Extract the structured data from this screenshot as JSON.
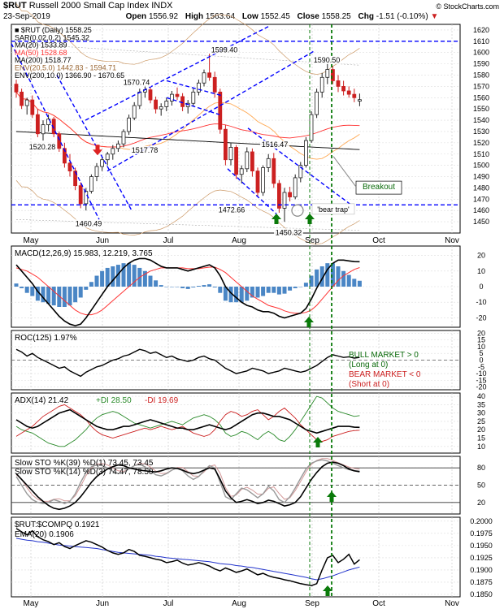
{
  "header": {
    "symbol": "$RUT",
    "name": "Russell 2000 Small Cap Index",
    "exchange": "INDX",
    "date": "23-Sep-2019",
    "open_label": "Open",
    "open": "1556.92",
    "high_label": "High",
    "high": "1563.64",
    "low_label": "Low",
    "low": "1552.45",
    "close_label": "Close",
    "close": "1558.25",
    "chg_label": "Chg",
    "chg": "-1.51 (-0.10%)",
    "brand": "© StockCharts.com"
  },
  "colors": {
    "up": "#1f1f1f",
    "down": "#cc2020",
    "trend": "#0000ff",
    "arrow_up": "#0a7a0a",
    "arrow_down": "#dd2222",
    "histogram": "#4a86c5",
    "ma20": "#ffaa55",
    "ma50": "#ff3333",
    "ma200": "#000000",
    "env20": "#cc9966",
    "env200": "#aaaaaa",
    "plusdi": "#2a8a2a",
    "minusdi": "#cc2020"
  },
  "chart_data": [
    {
      "type": "candlestick",
      "panel": "price",
      "legend": [
        "■ $RUT (Daily) 1558.25",
        "SAR(0.02,0.2) 1545.32",
        "MA(20) 1533.89",
        "MA(50) 1528.68",
        "MA(200) 1518.77",
        "ENV(20,5.0) 1442.83 - 1594.71",
        "ENV(200,10.0) 1366.90 - 1670.65"
      ],
      "y_ticks": [
        1450,
        1460,
        1470,
        1480,
        1490,
        1500,
        1510,
        1520,
        1530,
        1540,
        1550,
        1560,
        1570,
        1580,
        1590,
        1600,
        1610,
        1620
      ],
      "ylim": [
        1440,
        1625
      ],
      "x_labels": [
        "May",
        "Jun",
        "Jul",
        "Aug",
        "Sep",
        "Oct",
        "Nov"
      ],
      "annotations": [
        "1599.40",
        "1590.50",
        "1570.74",
        "1520.28",
        "1517.78",
        "1516.47",
        "1472.66",
        "1460.49",
        "1450.32",
        "Breakout",
        "'bear trap'"
      ],
      "candles": [
        [
          1572,
          1576,
          1560,
          1565
        ],
        [
          1565,
          1568,
          1550,
          1553
        ],
        [
          1553,
          1560,
          1545,
          1558
        ],
        [
          1558,
          1562,
          1542,
          1545
        ],
        [
          1545,
          1550,
          1525,
          1528
        ],
        [
          1528,
          1540,
          1522,
          1536
        ],
        [
          1536,
          1545,
          1530,
          1541
        ],
        [
          1541,
          1543,
          1525,
          1528
        ],
        [
          1528,
          1530,
          1512,
          1515
        ],
        [
          1515,
          1520,
          1498,
          1502
        ],
        [
          1502,
          1510,
          1490,
          1495
        ],
        [
          1495,
          1498,
          1478,
          1482
        ],
        [
          1482,
          1485,
          1462,
          1466
        ],
        [
          1466,
          1480,
          1460,
          1477
        ],
        [
          1477,
          1492,
          1475,
          1490
        ],
        [
          1490,
          1502,
          1486,
          1499
        ],
        [
          1499,
          1508,
          1495,
          1505
        ],
        [
          1505,
          1512,
          1500,
          1510
        ],
        [
          1510,
          1518,
          1505,
          1515
        ],
        [
          1515,
          1522,
          1512,
          1519
        ],
        [
          1519,
          1532,
          1516,
          1530
        ],
        [
          1530,
          1545,
          1527,
          1542
        ],
        [
          1542,
          1556,
          1540,
          1553
        ],
        [
          1553,
          1568,
          1550,
          1565
        ],
        [
          1565,
          1571,
          1560,
          1567
        ],
        [
          1567,
          1570,
          1555,
          1558
        ],
        [
          1558,
          1561,
          1546,
          1550
        ],
        [
          1550,
          1555,
          1544,
          1552
        ],
        [
          1552,
          1560,
          1548,
          1557
        ],
        [
          1557,
          1566,
          1553,
          1563
        ],
        [
          1563,
          1569,
          1558,
          1561
        ],
        [
          1561,
          1564,
          1548,
          1552
        ],
        [
          1552,
          1558,
          1546,
          1555
        ],
        [
          1555,
          1568,
          1552,
          1565
        ],
        [
          1565,
          1576,
          1562,
          1573
        ],
        [
          1573,
          1585,
          1570,
          1582
        ],
        [
          1582,
          1599,
          1575,
          1578
        ],
        [
          1578,
          1583,
          1560,
          1565
        ],
        [
          1565,
          1568,
          1528,
          1532
        ],
        [
          1532,
          1536,
          1500,
          1505
        ],
        [
          1505,
          1520,
          1500,
          1516
        ],
        [
          1516,
          1518,
          1488,
          1492
        ],
        [
          1492,
          1500,
          1484,
          1497
        ],
        [
          1497,
          1516,
          1494,
          1512
        ],
        [
          1512,
          1515,
          1490,
          1495
        ],
        [
          1495,
          1498,
          1472,
          1476
        ],
        [
          1476,
          1500,
          1473,
          1498
        ],
        [
          1498,
          1510,
          1494,
          1506
        ],
        [
          1506,
          1511,
          1480,
          1484
        ],
        [
          1484,
          1487,
          1458,
          1462
        ],
        [
          1462,
          1480,
          1450,
          1476
        ],
        [
          1476,
          1481,
          1468,
          1472
        ],
        [
          1472,
          1492,
          1470,
          1489
        ],
        [
          1489,
          1503,
          1485,
          1500
        ],
        [
          1500,
          1525,
          1498,
          1522
        ],
        [
          1522,
          1548,
          1520,
          1545
        ],
        [
          1545,
          1568,
          1542,
          1565
        ],
        [
          1565,
          1582,
          1560,
          1578
        ],
        [
          1578,
          1590,
          1572,
          1585
        ],
        [
          1585,
          1588,
          1572,
          1575
        ],
        [
          1575,
          1580,
          1565,
          1570
        ],
        [
          1570,
          1575,
          1562,
          1566
        ],
        [
          1566,
          1570,
          1560,
          1563
        ],
        [
          1563,
          1568,
          1556,
          1560
        ],
        [
          1556.92,
          1563.64,
          1552.45,
          1558.25
        ]
      ]
    },
    {
      "type": "line",
      "panel": "macd",
      "label": "MACD(12,26,9) 15.983, 12.219, 3.765",
      "y_ticks": [
        -20,
        -10,
        0,
        10,
        20
      ],
      "ylim": [
        -26,
        26
      ],
      "macd": [
        14,
        10,
        6,
        2,
        -3,
        -7,
        -11,
        -15,
        -19,
        -22,
        -24,
        -25,
        -24,
        -20,
        -15,
        -10,
        -5,
        0,
        4,
        8,
        12,
        15,
        17,
        18,
        18,
        17,
        15,
        13,
        12,
        12,
        12,
        11,
        10,
        11,
        12,
        13,
        14,
        12,
        7,
        0,
        -4,
        -7,
        -10,
        -12,
        -13,
        -15,
        -16,
        -16,
        -17,
        -19,
        -20,
        -19,
        -18,
        -17,
        -14,
        -8,
        -1,
        5,
        11,
        15,
        17,
        17,
        16.5,
        16,
        15.983
      ],
      "signal": [
        12,
        11,
        10,
        8,
        6,
        3,
        0,
        -3,
        -6,
        -9,
        -12,
        -15,
        -17,
        -18,
        -18,
        -17,
        -15,
        -12,
        -9,
        -6,
        -3,
        0,
        3,
        6,
        8,
        10,
        11,
        12,
        12,
        12,
        12,
        12,
        11.5,
        11.5,
        11.5,
        12,
        12.5,
        12.5,
        11,
        9,
        6,
        3,
        0,
        -3,
        -6,
        -8,
        -10,
        -12,
        -13,
        -14,
        -15.5,
        -16.5,
        -17,
        -17,
        -16.5,
        -15,
        -12,
        -8,
        -4,
        0,
        4,
        7,
        9,
        11,
        12.219
      ]
    },
    {
      "type": "line",
      "panel": "roc",
      "label": "ROC(125) 1.97%",
      "y_ticks": [
        -20,
        -15,
        -10,
        -5,
        0,
        5,
        10,
        15,
        20
      ],
      "ylim": [
        -22,
        22
      ],
      "notes": [
        "BULL MARKET > 0",
        "(Long at 0)",
        "BEAR MARKET < 0",
        "(Short at 0)"
      ],
      "values": [
        8,
        6,
        3,
        5,
        2,
        0,
        -2,
        -4,
        -6,
        -5,
        -8,
        -10,
        -12,
        -9,
        -7,
        -5,
        -4,
        -2,
        0,
        1,
        3,
        4,
        6,
        8,
        7,
        5,
        6,
        4,
        2,
        3,
        1,
        0,
        -1,
        0,
        2,
        3,
        1,
        0,
        -3,
        -6,
        -8,
        -10,
        -9,
        -8,
        -6,
        -7,
        -8,
        -10,
        -9,
        -8,
        -6,
        -7,
        -8,
        -9,
        -8,
        -6,
        -4,
        -1,
        2,
        4,
        3,
        2,
        2.5,
        1.5,
        1.97
      ]
    },
    {
      "type": "line",
      "panel": "adx",
      "label_adx": "ADX(14) 21.42",
      "label_plus": "+DI 28.50",
      "label_minus": "-DI 19.69",
      "y_ticks": [
        10,
        15,
        20,
        25,
        30,
        35,
        40
      ],
      "ylim": [
        6,
        42
      ],
      "adx": [
        26,
        24,
        22,
        21,
        22,
        24,
        26,
        28,
        30,
        31,
        32,
        30,
        28,
        26,
        24,
        22,
        21,
        20,
        20,
        21,
        22,
        22,
        23,
        24,
        25,
        26,
        25,
        24,
        23,
        22,
        21,
        21,
        20,
        20,
        21,
        22,
        23,
        22,
        21,
        20,
        21,
        23,
        25,
        27,
        29,
        30,
        30,
        29,
        28,
        28,
        27,
        26,
        24,
        22,
        20,
        19,
        18,
        19,
        20,
        21,
        22,
        22,
        22,
        21.5,
        21.42
      ],
      "plus_di": [
        22,
        20,
        19,
        18,
        16,
        14,
        12,
        11,
        10,
        10,
        12,
        14,
        17,
        20,
        24,
        27,
        29,
        30,
        31,
        30,
        28,
        26,
        24,
        23,
        22,
        21,
        22,
        23,
        24,
        25,
        24,
        23,
        25,
        27,
        28,
        29,
        28,
        26,
        23,
        18,
        16,
        17,
        19,
        18,
        16,
        14,
        17,
        19,
        17,
        14,
        13,
        16,
        20,
        25,
        30,
        35,
        40,
        39,
        36,
        33,
        31,
        30,
        29,
        28,
        28.5
      ],
      "minus_di": [
        16,
        18,
        20,
        22,
        25,
        28,
        30,
        32,
        34,
        35,
        33,
        31,
        29,
        26,
        22,
        19,
        17,
        16,
        15,
        16,
        17,
        18,
        19,
        20,
        21,
        20,
        21,
        22,
        21,
        20,
        21,
        22,
        20,
        18,
        17,
        16,
        17,
        20,
        25,
        29,
        31,
        30,
        28,
        29,
        31,
        32,
        29,
        26,
        28,
        31,
        33,
        30,
        27,
        23,
        20,
        17,
        14,
        13,
        14,
        16,
        17,
        18,
        19,
        19.5,
        19.69
      ]
    },
    {
      "type": "line",
      "panel": "stochastics",
      "label_1": "Slow STO %K(39) %D(1) 73.45, 73.45",
      "label_2": "Slow STO %K(14) %D(3) 74.47, 78.50",
      "y_ticks": [
        20,
        50,
        80
      ],
      "ylim": [
        0,
        100
      ],
      "slow39": [
        70,
        60,
        50,
        40,
        30,
        22,
        15,
        10,
        8,
        10,
        14,
        20,
        30,
        42,
        55,
        65,
        72,
        78,
        82,
        85,
        84,
        80,
        78,
        76,
        75,
        74,
        73,
        75,
        78,
        80,
        79,
        76,
        72,
        70,
        72,
        76,
        80,
        78,
        60,
        40,
        28,
        20,
        22,
        25,
        22,
        18,
        20,
        24,
        22,
        18,
        14,
        16,
        20,
        30,
        45,
        60,
        72,
        82,
        88,
        90,
        88,
        84,
        78,
        75,
        73.45
      ],
      "slow14": [
        65,
        50,
        35,
        25,
        20,
        18,
        20,
        25,
        22,
        18,
        22,
        35,
        55,
        72,
        82,
        85,
        84,
        80,
        74,
        70,
        72,
        78,
        84,
        86,
        82,
        75,
        68,
        66,
        70,
        76,
        80,
        75,
        66,
        60,
        65,
        75,
        84,
        80,
        55,
        30,
        25,
        35,
        45,
        42,
        35,
        28,
        35,
        48,
        40,
        25,
        20,
        30,
        45,
        62,
        78,
        88,
        92,
        94,
        92,
        88,
        84,
        80,
        77,
        75,
        74.47
      ]
    },
    {
      "type": "line",
      "panel": "ratio",
      "label": "$RUT:$COMPQ 0.1921",
      "label_ema": "EMA(20) 0.1906",
      "y_ticks": [
        0.185,
        0.1875,
        0.19,
        0.1925,
        0.195,
        0.1975,
        0.2
      ],
      "ylim": [
        0.1845,
        0.2008
      ],
      "ratio": [
        0.1985,
        0.1978,
        0.1972,
        0.198,
        0.1968,
        0.1962,
        0.1958,
        0.1952,
        0.1956,
        0.1948,
        0.1944,
        0.195,
        0.1955,
        0.196,
        0.1957,
        0.1952,
        0.1947,
        0.194,
        0.1935,
        0.1932,
        0.1935,
        0.1942,
        0.1938,
        0.193,
        0.1928,
        0.1925,
        0.1922,
        0.192,
        0.1915,
        0.1917,
        0.192,
        0.1914,
        0.191,
        0.1912,
        0.1915,
        0.1912,
        0.1908,
        0.1902,
        0.1898,
        0.1904,
        0.19,
        0.1895,
        0.1898,
        0.1902,
        0.1896,
        0.189,
        0.1893,
        0.1888,
        0.1885,
        0.1883,
        0.188,
        0.1878,
        0.1875,
        0.1872,
        0.187,
        0.1868,
        0.1872,
        0.19,
        0.1925,
        0.193,
        0.1915,
        0.1922,
        0.1932,
        0.1912,
        0.1921
      ],
      "ema": [
        0.1965,
        0.1963,
        0.1961,
        0.196,
        0.1958,
        0.1957,
        0.1955,
        0.1953,
        0.1951,
        0.195,
        0.1949,
        0.1948,
        0.1947,
        0.1946,
        0.1945,
        0.1944,
        0.1942,
        0.194,
        0.1938,
        0.1936,
        0.1935,
        0.1934,
        0.1933,
        0.1932,
        0.1931,
        0.193,
        0.1928,
        0.1927,
        0.1925,
        0.1924,
        0.1923,
        0.1922,
        0.1921,
        0.192,
        0.1919,
        0.1918,
        0.1917,
        0.1915,
        0.1913,
        0.1912,
        0.1911,
        0.1909,
        0.1908,
        0.1906,
        0.1905,
        0.1903,
        0.1901,
        0.1899,
        0.1897,
        0.1895,
        0.1893,
        0.1891,
        0.1889,
        0.1887,
        0.1885,
        0.1882,
        0.188,
        0.1882,
        0.1885,
        0.1888,
        0.1892,
        0.1896,
        0.19,
        0.1903,
        0.1906
      ]
    }
  ]
}
